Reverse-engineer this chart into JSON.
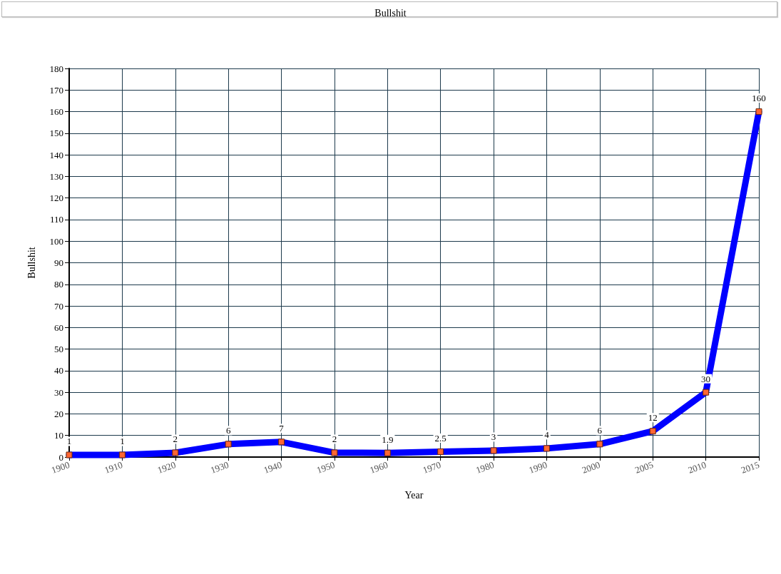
{
  "chart_data": {
    "type": "line",
    "title": "Bullshit",
    "xlabel": "Year",
    "ylabel": "Bullshit",
    "categories": [
      "1900",
      "1910",
      "1920",
      "1930",
      "1940",
      "1950",
      "1960",
      "1970",
      "1980",
      "1990",
      "2000",
      "2005",
      "2010",
      "2015"
    ],
    "series": [
      {
        "color": "#0000ff",
        "colors": [
          "#ff6633",
          "#ff6633",
          "#ff6633",
          "#ff6633",
          "#ff6633",
          "#ff6633",
          "#ff6633",
          "#ff6633",
          "#ff6633",
          "#ff6633",
          "#ff6633",
          "#ff6633",
          "#ff6633",
          "#ff6633"
        ],
        "values": [
          1,
          1,
          2,
          6,
          7,
          2,
          1.9,
          2.5,
          3,
          4,
          6,
          12,
          30,
          160
        ]
      }
    ],
    "ylim": [
      0,
      180
    ],
    "yticks": [
      0,
      10,
      20,
      30,
      40,
      50,
      60,
      70,
      80,
      90,
      100,
      110,
      120,
      130,
      140,
      150,
      160,
      170,
      180
    ],
    "grid": true,
    "marker": "square",
    "data_labels": true
  }
}
